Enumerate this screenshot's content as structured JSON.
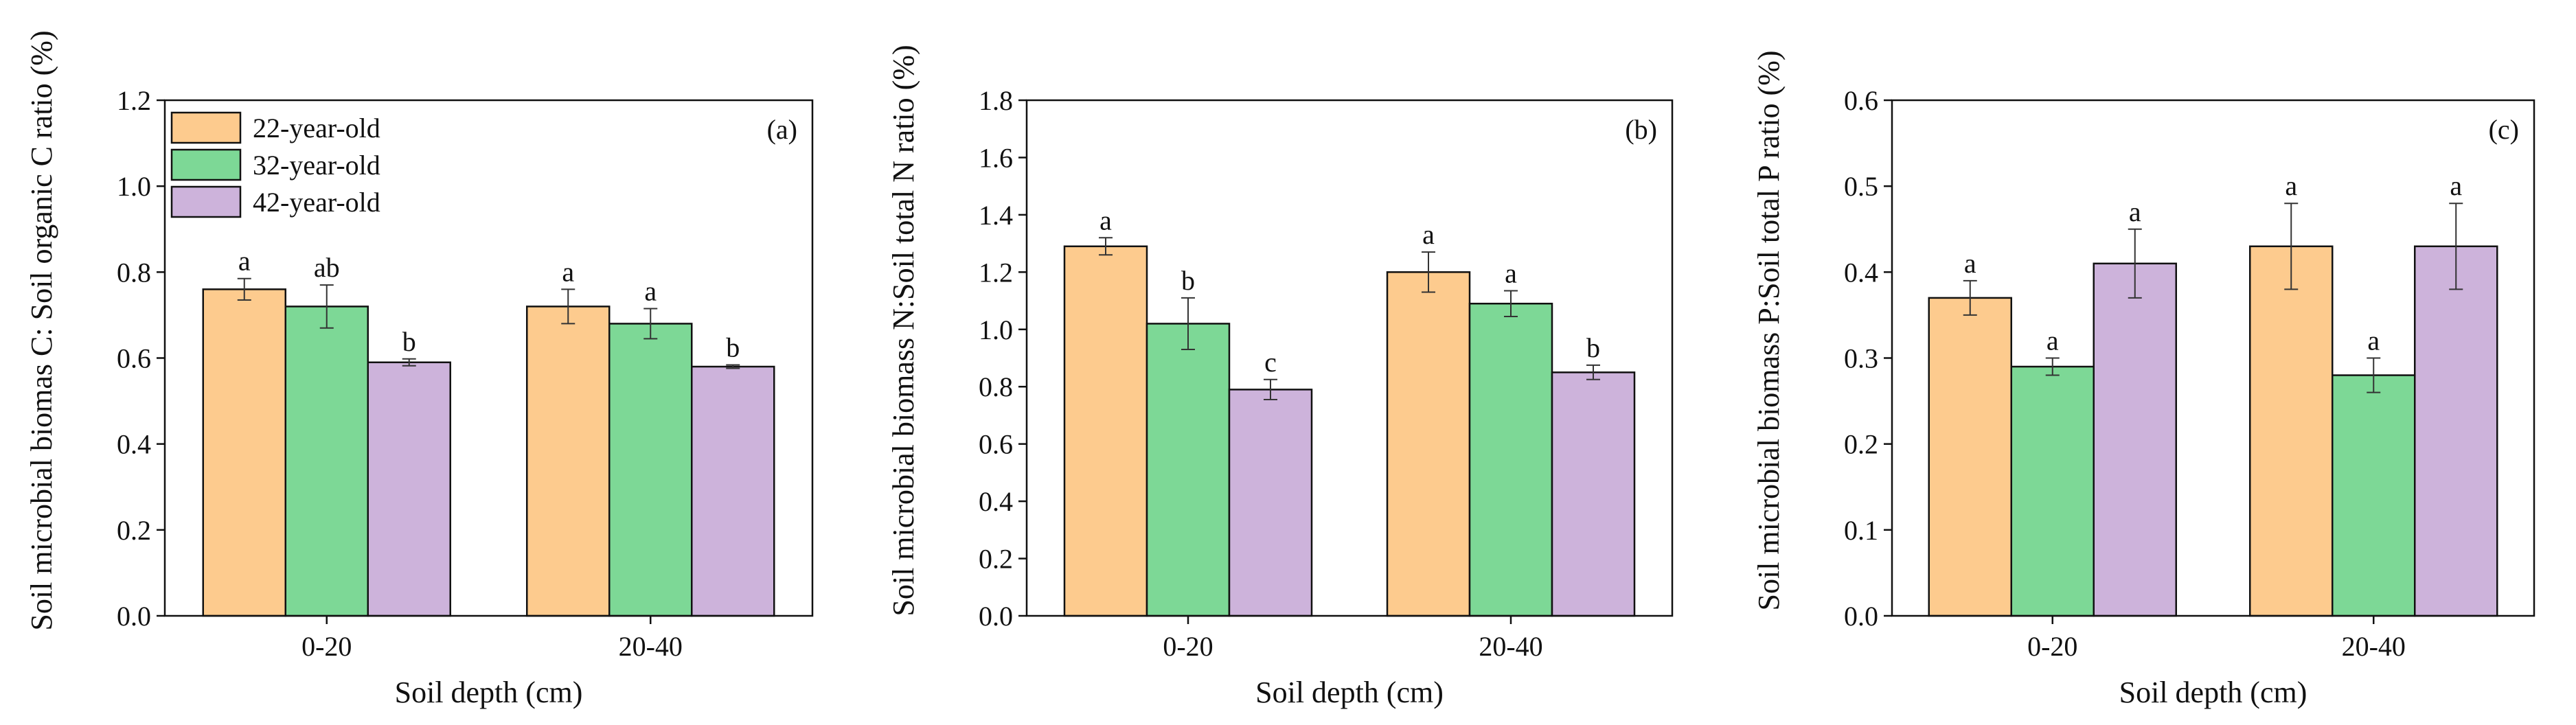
{
  "colors": {
    "22-year-old": "#FDCB8E",
    "32-year-old": "#7DD896",
    "42-year-old": "#CDB3DB"
  },
  "legend": {
    "items": [
      "22-year-old",
      "32-year-old",
      "42-year-old"
    ]
  },
  "chart_data": [
    {
      "type": "bar",
      "panel_label": "(a)",
      "xlabel": "Soil depth (cm)",
      "ylabel": "Soil microbial biomas C: Soil organic C ratio (%)",
      "ylim": [
        0,
        1.2
      ],
      "yticks": [
        "0.0",
        "0.2",
        "0.4",
        "0.6",
        "0.8",
        "1.0",
        "1.2"
      ],
      "categories": [
        "0-20",
        "20-40"
      ],
      "series": [
        {
          "name": "22-year-old",
          "values": [
            0.76,
            0.72
          ],
          "errors": [
            0.025,
            0.04
          ],
          "letters": [
            "a",
            "a"
          ]
        },
        {
          "name": "32-year-old",
          "values": [
            0.72,
            0.68
          ],
          "errors": [
            0.05,
            0.035
          ],
          "letters": [
            "ab",
            "a"
          ]
        },
        {
          "name": "42-year-old",
          "values": [
            0.59,
            0.58
          ],
          "errors": [
            0.008,
            0.004
          ],
          "letters": [
            "b",
            "b"
          ]
        }
      ]
    },
    {
      "type": "bar",
      "panel_label": "(b)",
      "xlabel": "Soil depth (cm)",
      "ylabel": "Soil microbial biomass N:Soil total N ratio (%)",
      "ylim": [
        0,
        1.8
      ],
      "yticks": [
        "0.0",
        "0.2",
        "0.4",
        "0.6",
        "0.8",
        "1.0",
        "1.2",
        "1.4",
        "1.6",
        "1.8"
      ],
      "categories": [
        "0-20",
        "20-40"
      ],
      "series": [
        {
          "name": "22-year-old",
          "values": [
            1.29,
            1.2
          ],
          "errors": [
            0.03,
            0.07
          ],
          "letters": [
            "a",
            "a"
          ]
        },
        {
          "name": "32-year-old",
          "values": [
            1.02,
            1.09
          ],
          "errors": [
            0.09,
            0.045
          ],
          "letters": [
            "b",
            "a"
          ]
        },
        {
          "name": "42-year-old",
          "values": [
            0.79,
            0.85
          ],
          "errors": [
            0.035,
            0.025
          ],
          "letters": [
            "c",
            "b"
          ]
        }
      ]
    },
    {
      "type": "bar",
      "panel_label": "(c)",
      "xlabel": "Soil depth (cm)",
      "ylabel": "Soil microbial biomass P:Soil total P ratio (%)",
      "ylim": [
        0,
        0.6
      ],
      "yticks": [
        "0.0",
        "0.1",
        "0.2",
        "0.3",
        "0.4",
        "0.5",
        "0.6"
      ],
      "categories": [
        "0-20",
        "20-40"
      ],
      "series": [
        {
          "name": "22-year-old",
          "values": [
            0.37,
            0.43
          ],
          "errors": [
            0.02,
            0.05
          ],
          "letters": [
            "a",
            "a"
          ]
        },
        {
          "name": "32-year-old",
          "values": [
            0.29,
            0.28
          ],
          "errors": [
            0.01,
            0.02
          ],
          "letters": [
            "a",
            "a"
          ]
        },
        {
          "name": "42-year-old",
          "values": [
            0.41,
            0.43
          ],
          "errors": [
            0.04,
            0.05
          ],
          "letters": [
            "a",
            "a"
          ]
        }
      ]
    }
  ]
}
